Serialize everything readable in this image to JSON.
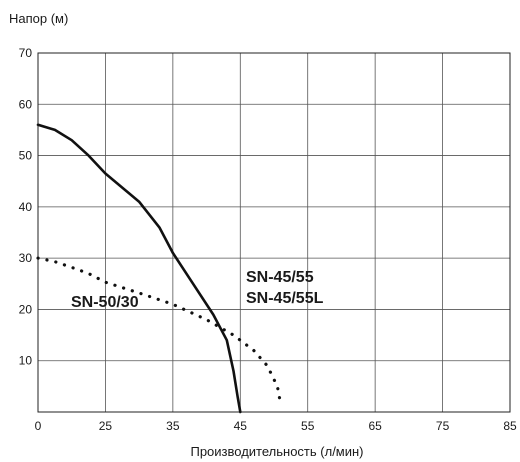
{
  "chart_data": {
    "type": "line",
    "title": "",
    "xlabel": "Производительность (л/мин)",
    "ylabel": "Напор (м)",
    "xlim": [
      5,
      85
    ],
    "ylim": [
      0,
      70
    ],
    "x_ticks": [
      "0",
      "25",
      "35",
      "45",
      "55",
      "65",
      "75",
      "85"
    ],
    "y_ticks": [
      "10",
      "20",
      "30",
      "40",
      "50",
      "60",
      "70"
    ],
    "grid": true,
    "series": [
      {
        "name": "SN-45/55\nSN-45/55L",
        "label_lines": [
          "SN-45/55",
          "SN-45/55L"
        ],
        "style": "solid",
        "color": "#111111",
        "x": [
          5,
          10,
          15,
          20,
          25,
          30,
          33,
          35,
          38,
          41,
          43,
          44,
          44.6,
          45
        ],
        "y": [
          56,
          55,
          53,
          50,
          46.5,
          41,
          36,
          31,
          25,
          19,
          14,
          8,
          3,
          0
        ]
      },
      {
        "name": "SN-50/30",
        "label_lines": [
          "SN-50/30"
        ],
        "style": "dotted",
        "color": "#111111",
        "x": [
          5,
          10,
          15,
          20,
          25,
          30,
          35,
          40,
          44,
          47,
          49,
          50.5,
          51
        ],
        "y": [
          30,
          29.3,
          28.2,
          27,
          25.3,
          23.2,
          21,
          18,
          15,
          12,
          9,
          5,
          1.5
        ]
      }
    ]
  }
}
